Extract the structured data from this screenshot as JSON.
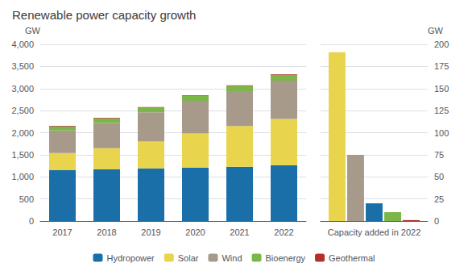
{
  "chart_data": [
    {
      "type": "bar",
      "title": "Renewable power capacity growth",
      "ylabel": "GW",
      "categories": [
        "2017",
        "2018",
        "2019",
        "2020",
        "2021",
        "2022"
      ],
      "series": [
        {
          "name": "Hydropower",
          "color": "#1a6fa8",
          "values": [
            1150,
            1170,
            1190,
            1210,
            1230,
            1260
          ]
        },
        {
          "name": "Solar",
          "color": "#e8d44d",
          "values": [
            390,
            480,
            610,
            770,
            920,
            1050
          ]
        },
        {
          "name": "Wind",
          "color": "#a89a8a",
          "values": [
            510,
            570,
            660,
            740,
            790,
            870
          ]
        },
        {
          "name": "Bioenergy",
          "color": "#7ab648",
          "values": [
            90,
            100,
            105,
            110,
            120,
            130
          ]
        },
        {
          "name": "Geothermal",
          "color": "#b5302a",
          "values": [
            14,
            14,
            14,
            14,
            15,
            15
          ]
        }
      ],
      "stacked": true,
      "ylim": [
        0,
        4000
      ],
      "yticks": [
        0,
        500,
        {
          "value": 1000,
          "label": "1,000"
        },
        {
          "value": 1500,
          "label": "1,500"
        },
        {
          "value": 2000,
          "label": "2,000"
        },
        {
          "value": 2500,
          "label": "2,500"
        },
        {
          "value": 3000,
          "label": "3,000"
        },
        {
          "value": 3500,
          "label": "3,500"
        },
        {
          "value": 4000,
          "label": "4,000"
        }
      ],
      "grid": true,
      "legend": "bottom"
    },
    {
      "type": "bar",
      "y2label": "GW",
      "categories": [
        "Capacity added in 2022"
      ],
      "series": [
        {
          "name": "Solar",
          "color": "#e8d44d",
          "values": [
            191
          ],
          "axis": "y2"
        },
        {
          "name": "Wind",
          "color": "#a89a8a",
          "values": [
            75
          ],
          "axis": "y2"
        },
        {
          "name": "Hydropower",
          "color": "#1a6fa8",
          "values": [
            20
          ],
          "axis": "y2"
        },
        {
          "name": "Bioenergy",
          "color": "#7ab648",
          "values": [
            10
          ],
          "axis": "y2"
        },
        {
          "name": "Geothermal",
          "color": "#b5302a",
          "values": [
            1
          ],
          "axis": "y2"
        }
      ],
      "y2lim": [
        0,
        200
      ],
      "y2ticks": [
        0,
        25,
        50,
        75,
        100,
        125,
        150,
        175,
        200
      ],
      "grid": true
    }
  ]
}
